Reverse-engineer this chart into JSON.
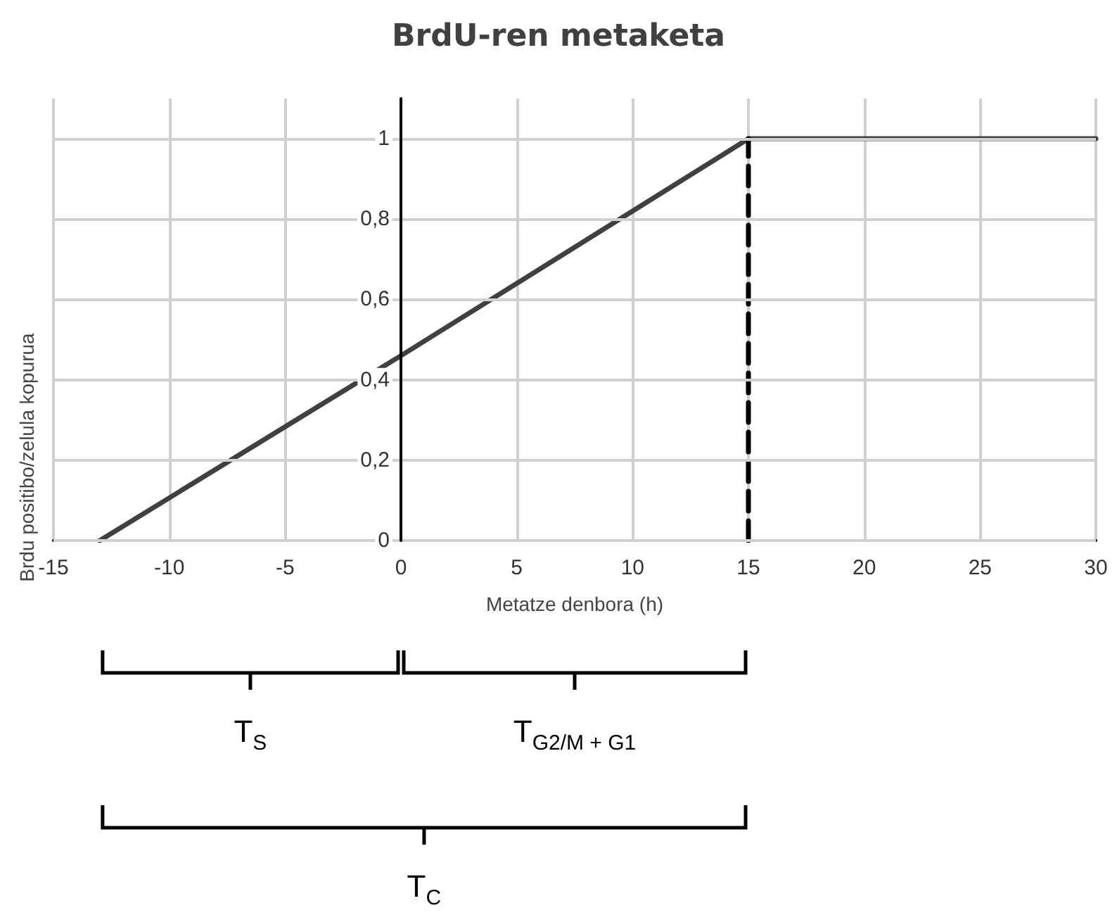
{
  "chart_data": {
    "type": "line",
    "title": "BrdU-ren metaketa",
    "xlabel": "Metatze denbora (h)",
    "ylabel": "Brdu positibo/zelula kopurua",
    "series": [
      {
        "x": [
          -13,
          0,
          15,
          30
        ],
        "values": [
          0,
          0.46,
          1,
          1
        ],
        "color": "#404040",
        "line_style": "solid"
      },
      {
        "x": [
          15,
          15
        ],
        "values": [
          0,
          1
        ],
        "color": "#000000",
        "line_style": "dashed"
      }
    ],
    "xlim": [
      -15,
      30
    ],
    "xticks": [
      -15,
      -10,
      -5,
      0,
      5,
      10,
      15,
      20,
      25,
      30
    ],
    "ylim": [
      0,
      1.1
    ],
    "yticks": [
      0,
      {
        "value": 0.2,
        "label": "0,2"
      },
      {
        "value": 0.4,
        "label": "0,4"
      },
      {
        "value": 0.6,
        "label": "0,6"
      },
      {
        "value": 0.8,
        "label": "0,8"
      },
      1
    ],
    "grid": true,
    "marker": "none",
    "annotations": [
      "T$_{S}$",
      "T$_{G2/M + G1}$",
      "T$_{C}$"
    ]
  }
}
